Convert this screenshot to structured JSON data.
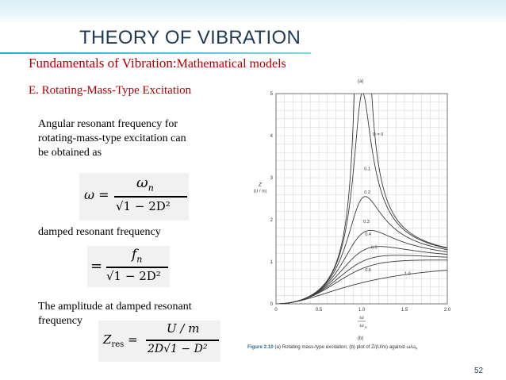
{
  "slide": {
    "title": "THEORY OF VIBRATION",
    "subtitle_a": "Fundamentals of Vibration:",
    "subtitle_b": "Mathematical models",
    "section": "E. Rotating-Mass-Type Excitation",
    "para1": [
      "Angular resonant frequency for",
      "rotating-mass-type excitation can",
      "be obtained as"
    ],
    "para2": "damped resonant frequency",
    "para3": [
      "The amplitude at damped resonant",
      "frequency"
    ],
    "page_number": "52"
  },
  "equations": {
    "eq1": {
      "lhs": "ω =",
      "num": "ω",
      "num_sub": "n",
      "den": "√1 − 2D²"
    },
    "eq2": {
      "lhs": "=",
      "num": "f",
      "num_sub": "n",
      "den": "√1 − 2D²"
    },
    "eq3": {
      "lhs": "Z",
      "lhs_sub": "res",
      "lhs_eq": "=",
      "num": "U / m",
      "den": "2D√1 − D²"
    }
  },
  "figure": {
    "label_a": "(a)",
    "label_b": "(b)",
    "caption_bold": "Figure 2.10",
    "caption_rest": "(a) Rotating mass-type excitation; (b) plot of Z/(U/m) against ω/ω",
    "caption_sub": "n"
  },
  "chart_data": {
    "type": "line",
    "xlabel": "ω",
    "xlabel_den": "ω",
    "xlabel_den_sub": "n",
    "ylabel": "Z",
    "ylabel_2": "(U / m)",
    "xlim": [
      0,
      2.0
    ],
    "ylim": [
      0,
      5
    ],
    "x_ticks": [
      "0",
      "0.5",
      "1.0",
      "1.5",
      "2.0"
    ],
    "y_ticks": [
      "0",
      "1",
      "2",
      "3",
      "4",
      "5"
    ],
    "grid": true,
    "series": [
      {
        "name": "D = 0",
        "D": 0
      },
      {
        "name": "0.1",
        "D": 0.1
      },
      {
        "name": "0.2",
        "D": 0.2
      },
      {
        "name": "0.3",
        "D": 0.3
      },
      {
        "name": "0.4",
        "D": 0.4
      },
      {
        "name": "0.5",
        "D": 0.5
      },
      {
        "name": "0.6",
        "D": 0.6
      },
      {
        "name": "1.0",
        "D": 1.0
      }
    ]
  }
}
